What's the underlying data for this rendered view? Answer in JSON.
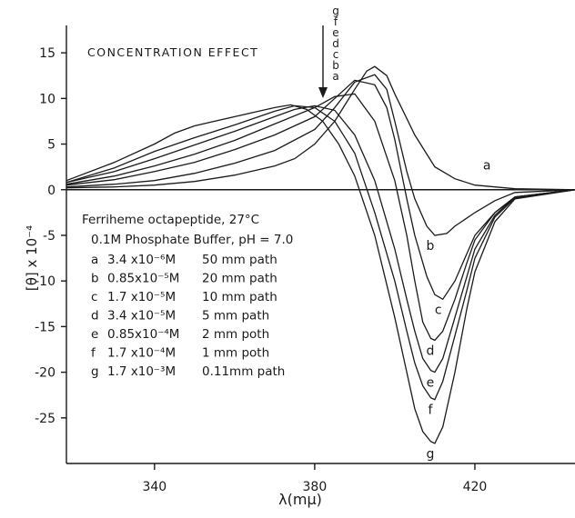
{
  "chart_data": {
    "type": "line",
    "title": "CONCENTRATION EFFECT",
    "xlabel": "λ(mμ)",
    "ylabel": "[θ] x 10⁻⁴",
    "xlim": [
      318,
      445
    ],
    "ylim": [
      -30,
      18
    ],
    "x_ticks": [
      340,
      380,
      420
    ],
    "y_ticks": [
      15,
      10,
      5,
      0,
      -5,
      -10,
      -15,
      -20,
      -25
    ],
    "grid": false,
    "arrow_labels": [
      "g",
      "f",
      "e",
      "d",
      "c",
      "b",
      "a"
    ],
    "legend": {
      "heading": [
        "Ferriheme octapeptide, 27°C",
        "0.1M Phosphate Buffer, pH = 7.0"
      ],
      "entries": [
        {
          "label": "a",
          "conc": "3.4 x10⁻⁶M",
          "path": "50 mm path"
        },
        {
          "label": "b",
          "conc": "0.85x10⁻⁵M",
          "path": "20 mm path"
        },
        {
          "label": "c",
          "conc": "1.7 x10⁻⁵M",
          "path": "10 mm path"
        },
        {
          "label": "d",
          "conc": "3.4 x10⁻⁵M",
          "path": "5 mm path"
        },
        {
          "label": "e",
          "conc": "0.85x10⁻⁴M",
          "path": "2 mm poth"
        },
        {
          "label": "f",
          "conc": "1.7 x10⁻⁴M",
          "path": "1 mm poth"
        },
        {
          "label": "g",
          "conc": "1.7 x10⁻³M",
          "path": "0.11mm path"
        }
      ]
    },
    "series": [
      {
        "name": "a",
        "x": [
          318,
          330,
          340,
          350,
          360,
          370,
          375,
          380,
          385,
          390,
          393,
          395,
          398,
          400,
          405,
          410,
          415,
          420,
          430,
          445
        ],
        "y": [
          0.2,
          0.3,
          0.5,
          0.9,
          1.6,
          2.6,
          3.4,
          5.0,
          7.5,
          11.0,
          13.0,
          13.5,
          12.5,
          10.5,
          6.0,
          2.5,
          1.2,
          0.5,
          0.1,
          0
        ]
      },
      {
        "name": "b",
        "x": [
          318,
          330,
          340,
          350,
          360,
          370,
          380,
          385,
          390,
          395,
          398,
          400,
          403,
          405,
          408,
          410,
          413,
          415,
          420,
          425,
          430,
          445
        ],
        "y": [
          0.3,
          0.6,
          1.0,
          1.8,
          2.9,
          4.3,
          6.6,
          9.0,
          11.8,
          12.6,
          11.0,
          7.5,
          2.0,
          -1.0,
          -4.0,
          -5.0,
          -4.8,
          -4.0,
          -2.5,
          -1.2,
          -0.3,
          0
        ]
      },
      {
        "name": "c",
        "x": [
          318,
          330,
          340,
          350,
          360,
          370,
          380,
          385,
          390,
          395,
          398,
          400,
          403,
          405,
          408,
          410,
          412,
          415,
          418,
          420,
          425,
          430,
          445
        ],
        "y": [
          0.5,
          1.1,
          2.0,
          3.0,
          4.4,
          6.0,
          8.0,
          10.0,
          12.0,
          11.5,
          9.0,
          5.5,
          -1.0,
          -5.0,
          -9.5,
          -11.5,
          -12.0,
          -10.0,
          -7.0,
          -5.0,
          -2.5,
          -0.8,
          0
        ]
      },
      {
        "name": "d",
        "x": [
          318,
          330,
          340,
          350,
          360,
          370,
          380,
          385,
          390,
          395,
          400,
          403,
          405,
          407,
          409,
          410,
          412,
          415,
          418,
          420,
          425,
          430,
          445
        ],
        "y": [
          0.6,
          1.5,
          2.6,
          3.9,
          5.4,
          7.2,
          9.0,
          10.2,
          10.5,
          7.5,
          1.0,
          -5.0,
          -10.0,
          -14.5,
          -16.3,
          -16.5,
          -15.5,
          -12.0,
          -8.0,
          -5.5,
          -2.5,
          -0.8,
          0
        ]
      },
      {
        "name": "e",
        "x": [
          318,
          330,
          340,
          350,
          360,
          370,
          375,
          380,
          385,
          390,
          395,
          400,
          403,
          405,
          407,
          409,
          410,
          412,
          415,
          418,
          420,
          425,
          430,
          445
        ],
        "y": [
          0.8,
          2.0,
          3.4,
          4.9,
          6.4,
          8.0,
          8.8,
          9.2,
          8.7,
          6.0,
          1.0,
          -6.5,
          -12.0,
          -15.5,
          -18.5,
          -19.8,
          -20.0,
          -18.5,
          -14.0,
          -9.5,
          -6.5,
          -2.8,
          -0.8,
          0
        ]
      },
      {
        "name": "f",
        "x": [
          318,
          330,
          340,
          350,
          360,
          370,
          375,
          380,
          385,
          390,
          395,
          400,
          403,
          405,
          407,
          409,
          410,
          412,
          415,
          418,
          420,
          425,
          430,
          445
        ],
        "y": [
          0.8,
          2.4,
          4.2,
          5.7,
          7.1,
          8.6,
          9.2,
          9.0,
          7.5,
          4.0,
          -2.5,
          -10.0,
          -15.5,
          -19.0,
          -21.5,
          -22.8,
          -23.0,
          -21.0,
          -16.0,
          -11.0,
          -7.5,
          -3.0,
          -0.9,
          0
        ]
      },
      {
        "name": "g",
        "x": [
          318,
          330,
          340,
          345,
          350,
          355,
          360,
          365,
          370,
          374,
          378,
          382,
          386,
          390,
          395,
          400,
          403,
          405,
          407,
          409,
          410,
          412,
          415,
          418,
          420,
          425,
          430,
          445
        ],
        "y": [
          1.0,
          3.0,
          5.0,
          6.2,
          7.0,
          7.5,
          8.0,
          8.5,
          9.0,
          9.3,
          8.8,
          7.5,
          5.0,
          1.5,
          -5.0,
          -14.0,
          -20.0,
          -24.0,
          -26.5,
          -27.6,
          -27.8,
          -26.0,
          -20.0,
          -13.0,
          -9.0,
          -3.5,
          -1.0,
          0
        ]
      }
    ]
  }
}
